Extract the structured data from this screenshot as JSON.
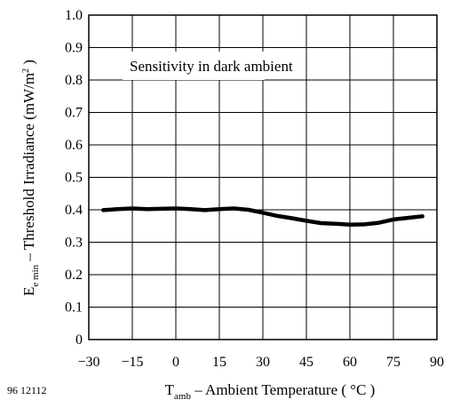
{
  "figure_id": "96 12112",
  "chart_data": {
    "type": "line",
    "title": "",
    "xlabel": {
      "symbol": "T",
      "subscript": "amb",
      "text": " – Ambient Temperature ( °C )"
    },
    "ylabel": {
      "symbol": "E",
      "subscript": "e min",
      "text": "  –  Threshold Irradiance (mW/m",
      "superscript": "2",
      "suffix": " )"
    },
    "xlim": [
      -30,
      90
    ],
    "ylim": [
      0,
      1.0
    ],
    "xticks": [
      "−30",
      "−15",
      "0",
      "15",
      "30",
      "45",
      "60",
      "75",
      "90"
    ],
    "yticks": [
      "0",
      "0.1",
      "0.2",
      "0.3",
      "0.4",
      "0.5",
      "0.6",
      "0.7",
      "0.8",
      "0.9",
      "1.0"
    ],
    "grid": true,
    "annotation": "Sensitivity in dark ambient",
    "series": [
      {
        "x": [
          -25,
          -20,
          -15,
          -10,
          -5,
          0,
          5,
          10,
          15,
          20,
          25,
          30,
          35,
          40,
          45,
          50,
          55,
          60,
          65,
          70,
          75,
          80,
          85
        ],
        "y": [
          0.399,
          0.402,
          0.404,
          0.402,
          0.403,
          0.404,
          0.402,
          0.399,
          0.402,
          0.404,
          0.4,
          0.391,
          0.381,
          0.374,
          0.366,
          0.359,
          0.357,
          0.354,
          0.355,
          0.36,
          0.37,
          0.375,
          0.38
        ],
        "color": "#000000"
      }
    ]
  }
}
